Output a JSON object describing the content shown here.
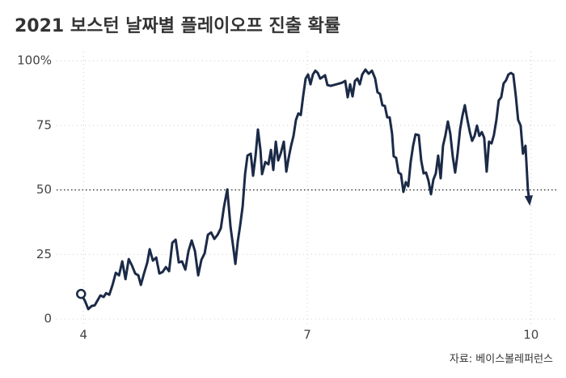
{
  "chart_data": {
    "type": "line",
    "title": "2021 보스턴 날짜별 플레이오프 진출 확률",
    "source": "자료: 베이스볼레퍼런스",
    "x": [
      3.968,
      4.022,
      4.065,
      4.108,
      4.152,
      4.195,
      4.227,
      4.271,
      4.303,
      4.347,
      4.39,
      4.433,
      4.477,
      4.52,
      4.563,
      4.607,
      4.65,
      4.693,
      4.736,
      4.769,
      4.812,
      4.856,
      4.888,
      4.931,
      4.975,
      5.018,
      5.061,
      5.105,
      5.148,
      5.191,
      5.235,
      5.278,
      5.321,
      5.365,
      5.408,
      5.451,
      5.495,
      5.538,
      5.581,
      5.625,
      5.668,
      5.711,
      5.755,
      5.798,
      5.841,
      5.885,
      5.928,
      5.971,
      6.015,
      6.036,
      6.069,
      6.101,
      6.134,
      6.166,
      6.199,
      6.242,
      6.274,
      6.307,
      6.339,
      6.372,
      6.394,
      6.437,
      6.48,
      6.513,
      6.545,
      6.578,
      6.61,
      6.643,
      6.686,
      6.719,
      6.751,
      6.783,
      6.816,
      6.848,
      6.881,
      6.913,
      6.946,
      6.978,
      7.011,
      7.043,
      7.076,
      7.108,
      7.141,
      7.173,
      7.206,
      7.238,
      7.271,
      7.314,
      7.39,
      7.466,
      7.509,
      7.542,
      7.574,
      7.607,
      7.639,
      7.672,
      7.704,
      7.737,
      7.78,
      7.823,
      7.867,
      7.91,
      7.942,
      7.975,
      8.007,
      8.04,
      8.072,
      8.105,
      8.137,
      8.159,
      8.191,
      8.224,
      8.256,
      8.289,
      8.321,
      8.354,
      8.386,
      8.419,
      8.451,
      8.495,
      8.527,
      8.56,
      8.592,
      8.625,
      8.658,
      8.69,
      8.723,
      8.755,
      8.788,
      8.82,
      8.852,
      8.885,
      8.917,
      8.95,
      8.982,
      9.015,
      9.048,
      9.08,
      9.112,
      9.145,
      9.177,
      9.21,
      9.242,
      9.275,
      9.307,
      9.34,
      9.372,
      9.405,
      9.437,
      9.47,
      9.502,
      9.535,
      9.567,
      9.6,
      9.632,
      9.665,
      9.697,
      9.73,
      9.762,
      9.795,
      9.827,
      9.86,
      9.892,
      9.925,
      9.957,
      9.979
    ],
    "series": [
      {
        "color": "#1b2a47",
        "values": [
          9.7,
          6.9,
          3.8,
          5.0,
          5.3,
          7.5,
          9.1,
          8.5,
          10.0,
          9.4,
          13.2,
          17.9,
          16.9,
          22.3,
          15.4,
          23.2,
          20.7,
          17.6,
          16.9,
          13.2,
          17.6,
          21.9,
          27.0,
          22.6,
          23.8,
          17.6,
          18.2,
          20.1,
          18.5,
          29.5,
          30.7,
          21.9,
          22.3,
          19.1,
          26.3,
          30.4,
          26.3,
          16.9,
          22.9,
          25.4,
          32.6,
          33.5,
          31.0,
          32.6,
          35.1,
          43.6,
          50.2,
          35.7,
          26.3,
          21.3,
          30.1,
          36.4,
          43.6,
          56.1,
          63.3,
          64.0,
          55.5,
          63.3,
          73.4,
          65.5,
          56.1,
          60.8,
          59.9,
          65.5,
          57.7,
          68.7,
          61.4,
          64.0,
          68.7,
          57.1,
          62.4,
          67.1,
          70.9,
          77.1,
          79.6,
          79.0,
          86.5,
          93.1,
          94.7,
          90.9,
          94.7,
          96.2,
          95.3,
          93.1,
          93.7,
          94.4,
          90.6,
          90.3,
          90.9,
          91.5,
          92.2,
          85.9,
          90.9,
          86.2,
          92.2,
          93.1,
          90.9,
          94.7,
          96.6,
          95.0,
          96.2,
          93.1,
          87.8,
          87.2,
          82.8,
          82.5,
          78.1,
          78.1,
          71.8,
          63.0,
          62.4,
          56.7,
          56.1,
          49.2,
          53.0,
          51.4,
          60.8,
          67.1,
          71.5,
          71.2,
          61.4,
          56.4,
          56.7,
          53.6,
          48.3,
          53.9,
          56.4,
          63.3,
          54.5,
          67.1,
          71.2,
          76.5,
          71.8,
          63.0,
          56.7,
          64.0,
          73.4,
          78.7,
          82.8,
          77.4,
          72.7,
          69.0,
          70.9,
          74.9,
          70.9,
          72.4,
          70.2,
          57.1,
          68.7,
          68.0,
          71.2,
          77.1,
          84.6,
          85.9,
          91.2,
          92.5,
          94.7,
          95.3,
          94.7,
          86.5,
          77.1,
          74.9,
          64.0,
          67.1,
          50.5,
          45.1
        ]
      }
    ],
    "xlim": [
      3.64,
      10.36
    ],
    "xticks": [
      4,
      7,
      10
    ],
    "ylim": [
      -5,
      106
    ],
    "yticks": [
      0,
      25,
      50,
      75,
      {
        "value": 100,
        "label": "100%"
      }
    ],
    "reference_line": 50,
    "grid": true
  }
}
